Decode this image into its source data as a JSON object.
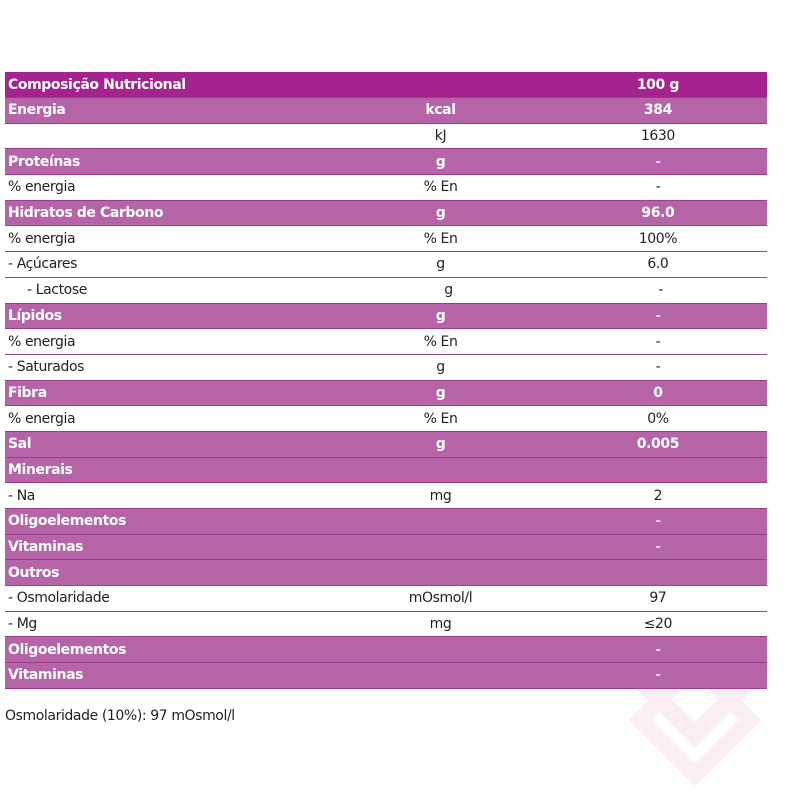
{
  "table": {
    "header": {
      "label": "Composição Nutricional",
      "unit": "",
      "value": "100 g"
    },
    "rows": [
      {
        "type": "section",
        "label": "Energia",
        "unit": "kcal",
        "value": "384"
      },
      {
        "type": "plain",
        "label": "",
        "unit": "kJ",
        "value": "1630"
      },
      {
        "type": "section",
        "label": "Proteínas",
        "unit": "g",
        "value": "-"
      },
      {
        "type": "plain",
        "label": "% energia",
        "unit": "% En",
        "value": "-"
      },
      {
        "type": "section",
        "label": "Hidratos de Carbono",
        "unit": "g",
        "value": "96.0"
      },
      {
        "type": "plain",
        "label": "% energia",
        "unit": "% En",
        "value": "100%"
      },
      {
        "type": "plain",
        "label": "- Açúcares",
        "unit": "g",
        "value": "6.0"
      },
      {
        "type": "plain",
        "label": "- Lactose",
        "unit": "g",
        "value": "-",
        "indent": true
      },
      {
        "type": "section",
        "label": "Lípidos",
        "unit": "g",
        "value": "-"
      },
      {
        "type": "plain",
        "label": "% energia",
        "unit": "% En",
        "value": "-"
      },
      {
        "type": "plain",
        "label": "- Saturados",
        "unit": "g",
        "value": "-"
      },
      {
        "type": "section",
        "label": "Fibra",
        "unit": "g",
        "value": "0"
      },
      {
        "type": "plain",
        "label": "% energia",
        "unit": "% En",
        "value": "0%"
      },
      {
        "type": "section",
        "label": "Sal",
        "unit": "g",
        "value": "0.005"
      },
      {
        "type": "section",
        "label": "Minerais",
        "unit": "",
        "value": ""
      },
      {
        "type": "plain",
        "label": "- Na",
        "unit": "mg",
        "value": "2"
      },
      {
        "type": "section",
        "label": "Oligoelementos",
        "unit": "",
        "value": "-"
      },
      {
        "type": "section",
        "label": "Vitaminas",
        "unit": "",
        "value": "-"
      },
      {
        "type": "section",
        "label": "Outros",
        "unit": "",
        "value": ""
      },
      {
        "type": "plain",
        "label": "- Osmolaridade",
        "unit": "mOsmol/l",
        "value": "97"
      },
      {
        "type": "plain",
        "label": "- Mg",
        "unit": "mg",
        "value": "≤20"
      },
      {
        "type": "section",
        "label": "Oligoelementos",
        "unit": "",
        "value": "-"
      },
      {
        "type": "section",
        "label": "Vitaminas",
        "unit": "",
        "value": "-"
      }
    ]
  },
  "footnote": "Osmolaridade (10%): 97 mOsmol/l",
  "colors": {
    "title_bg": "#a4238f",
    "section_bg": "#b565a7",
    "border": "#9b3d8c",
    "text_dark": "#222222",
    "text_light": "#ffffff"
  },
  "watermark": {
    "icon": "heart-logo-icon"
  }
}
